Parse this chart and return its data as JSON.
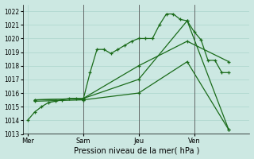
{
  "background_color": "#cce8e2",
  "grid_color": "#aad4cc",
  "line_color": "#1a6b1a",
  "xlabel": "Pression niveau de la mer( hPa )",
  "ylim": [
    1013,
    1022.5
  ],
  "yticks": [
    1013,
    1014,
    1015,
    1016,
    1017,
    1018,
    1019,
    1020,
    1021,
    1022
  ],
  "day_labels": [
    "Mer",
    "Sam",
    "Jeu",
    "Ven"
  ],
  "day_positions": [
    0,
    24,
    48,
    72
  ],
  "xlim": [
    -2,
    96
  ],
  "vline_positions": [
    24,
    48,
    72
  ],
  "series": [
    {
      "x": [
        0,
        3,
        6,
        9,
        12,
        15,
        18,
        21,
        24,
        27,
        30,
        33,
        36,
        39,
        42,
        45,
        48,
        51,
        54,
        57,
        60,
        63,
        66,
        69,
        72,
        75,
        78,
        81,
        84,
        87
      ],
      "y": [
        1014.0,
        1014.6,
        1015.0,
        1015.3,
        1015.4,
        1015.5,
        1015.6,
        1015.6,
        1015.5,
        1017.5,
        1019.2,
        1019.2,
        1018.9,
        1019.2,
        1019.5,
        1019.8,
        1020.0,
        1020.0,
        1020.0,
        1021.0,
        1021.8,
        1021.8,
        1021.4,
        1021.3,
        1020.5,
        1019.9,
        1018.4,
        1018.4,
        1017.5,
        1017.5
      ]
    },
    {
      "x": [
        3,
        24,
        48,
        69,
        87
      ],
      "y": [
        1015.5,
        1015.6,
        1018.0,
        1019.8,
        1018.3
      ]
    },
    {
      "x": [
        3,
        24,
        48,
        69,
        87
      ],
      "y": [
        1015.5,
        1015.6,
        1017.0,
        1021.3,
        1013.3
      ]
    },
    {
      "x": [
        3,
        24,
        48,
        69,
        87
      ],
      "y": [
        1015.4,
        1015.5,
        1016.0,
        1018.3,
        1013.3
      ]
    }
  ]
}
